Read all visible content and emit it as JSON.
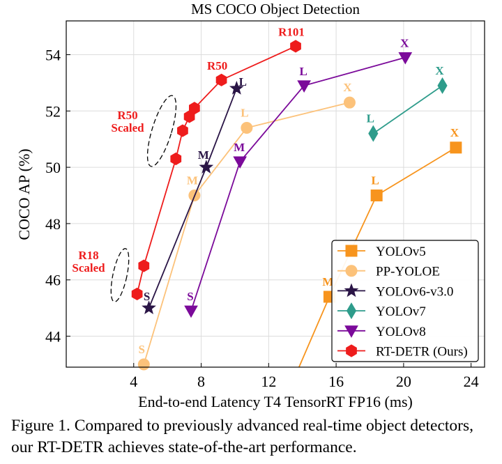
{
  "chart_data": {
    "type": "scatter",
    "title": "MS COCO Object Detection",
    "xlabel": "End-to-end Latency T4 TensorRT FP16 (ms)",
    "ylabel": "COCO AP (%)",
    "xlim": [
      0,
      24.8
    ],
    "ylim": [
      42.9,
      55.2
    ],
    "xticks": [
      4,
      8,
      12,
      16,
      20,
      24
    ],
    "yticks": [
      44,
      46,
      48,
      50,
      52,
      54
    ],
    "grid": true,
    "legend_position": "lower-right",
    "series": [
      {
        "name": "YOLOv5",
        "color": "#f7941d",
        "marker": "square",
        "points": [
          {
            "x": 13.8,
            "y": 42.9,
            "label": ""
          },
          {
            "x": 15.6,
            "y": 45.4,
            "label": "M"
          },
          {
            "x": 18.4,
            "y": 49.0,
            "label": "L"
          },
          {
            "x": 23.1,
            "y": 50.7,
            "label": "X"
          }
        ]
      },
      {
        "name": "PP-YOLOE",
        "color": "#fcc27a",
        "marker": "circle",
        "points": [
          {
            "x": 4.6,
            "y": 43.0,
            "label": "S"
          },
          {
            "x": 7.6,
            "y": 49.0,
            "label": "M"
          },
          {
            "x": 10.7,
            "y": 51.4,
            "label": "L"
          },
          {
            "x": 16.8,
            "y": 52.3,
            "label": "X"
          }
        ]
      },
      {
        "name": "YOLOv6-v3.0",
        "color": "#2a1546",
        "marker": "star",
        "points": [
          {
            "x": 4.9,
            "y": 45.0,
            "label": "S"
          },
          {
            "x": 8.3,
            "y": 50.0,
            "label": "M"
          },
          {
            "x": 10.1,
            "y": 52.8,
            "label": "L"
          }
        ]
      },
      {
        "name": "YOLOv7",
        "color": "#2e9c8b",
        "marker": "diamond",
        "points": [
          {
            "x": 18.2,
            "y": 51.2,
            "label": "L"
          },
          {
            "x": 22.3,
            "y": 52.9,
            "label": "X"
          }
        ]
      },
      {
        "name": "YOLOv8",
        "color": "#7b0a9a",
        "marker": "triangle-down",
        "points": [
          {
            "x": 7.4,
            "y": 44.9,
            "label": "S"
          },
          {
            "x": 10.3,
            "y": 50.2,
            "label": "M"
          },
          {
            "x": 14.1,
            "y": 52.9,
            "label": "L"
          },
          {
            "x": 20.1,
            "y": 53.9,
            "label": "X"
          }
        ]
      },
      {
        "name": "RT-DETR (Ours)",
        "color": "#ee1c1c",
        "marker": "hexagon",
        "points": [
          {
            "x": 4.2,
            "y": 45.5,
            "label": ""
          },
          {
            "x": 4.6,
            "y": 46.5,
            "label": ""
          },
          {
            "x": 6.5,
            "y": 50.3,
            "label": ""
          },
          {
            "x": 6.9,
            "y": 51.3,
            "label": ""
          },
          {
            "x": 7.3,
            "y": 51.8,
            "label": ""
          },
          {
            "x": 7.6,
            "y": 52.1,
            "label": ""
          },
          {
            "x": 9.2,
            "y": 53.1,
            "label": "R50"
          },
          {
            "x": 13.6,
            "y": 54.3,
            "label": "R101"
          }
        ]
      }
    ],
    "annotations": [
      {
        "lines": [
          "R50",
          "Scaled"
        ],
        "color": "#ee1c1c"
      },
      {
        "lines": [
          "R18",
          "Scaled"
        ],
        "color": "#ee1c1c"
      }
    ]
  },
  "caption": "Figure 1. Compared to previously advanced real-time object detectors, our RT-DETR achieves state-of-the-art performance."
}
